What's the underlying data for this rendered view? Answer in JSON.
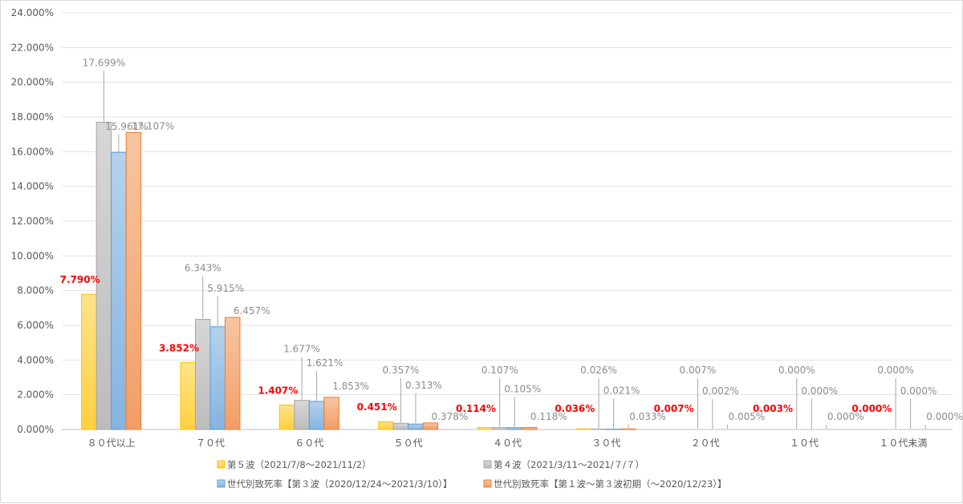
{
  "chart_data": {
    "type": "bar",
    "categories": [
      "８０代以上",
      "７０代",
      "６０代",
      "５０代",
      "４０代",
      "３０代",
      "２０代",
      "１０代",
      "１０代未満"
    ],
    "ylim": [
      0,
      24
    ],
    "yticks": [
      "0.000%",
      "2.000%",
      "4.000%",
      "6.000%",
      "8.000%",
      "10.000%",
      "12.000%",
      "14.000%",
      "16.000%",
      "18.000%",
      "20.000%",
      "22.000%",
      "24.000%"
    ],
    "grid": true,
    "legend_position": "bottom",
    "series": [
      {
        "name": "第５波（2021/7/8～2021/11/2）",
        "color": "#ffc000",
        "values": [
          7.79,
          3.852,
          1.407,
          0.451,
          0.114,
          0.036,
          0.007,
          0.003,
          0.0
        ],
        "labels": [
          "7.790%",
          "3.852%",
          "1.407%",
          "0.451%",
          "0.114%",
          "0.036%",
          "0.007%",
          "0.003%",
          "0.000%"
        ]
      },
      {
        "name": "第４波（2021/3/11～2021/７/７）",
        "color": "#a5a5a5",
        "values": [
          17.699,
          6.343,
          1.677,
          0.357,
          0.107,
          0.026,
          0.007,
          0.0,
          0.0
        ],
        "labels": [
          "17.699%",
          "6.343%",
          "1.677%",
          "0.357%",
          "0.107%",
          "0.026%",
          "0.007%",
          "0.000%",
          "0.000%"
        ]
      },
      {
        "name": "世代別致死率【第３波（2020/12/24～2021/3/10）】",
        "color": "#5b9bd5",
        "values": [
          15.961,
          5.915,
          1.621,
          0.313,
          0.105,
          0.021,
          0.002,
          0.0,
          0.0
        ],
        "labels": [
          "15.961%",
          "5.915%",
          "1.621%",
          "0.313%",
          "0.105%",
          "0.021%",
          "0.002%",
          "0.000%",
          "0.000%"
        ]
      },
      {
        "name": "世代別致死率【第１波～第３波初期（～2020/12/23）】",
        "color": "#ed7d31",
        "values": [
          17.107,
          6.457,
          1.853,
          0.378,
          0.118,
          0.033,
          0.005,
          0.0,
          0.0
        ],
        "labels": [
          "17.107%",
          "6.457%",
          "1.853%",
          "0.378%",
          "0.118%",
          "0.033%",
          "0.005%",
          "0.000%",
          "0.000%"
        ]
      }
    ]
  }
}
